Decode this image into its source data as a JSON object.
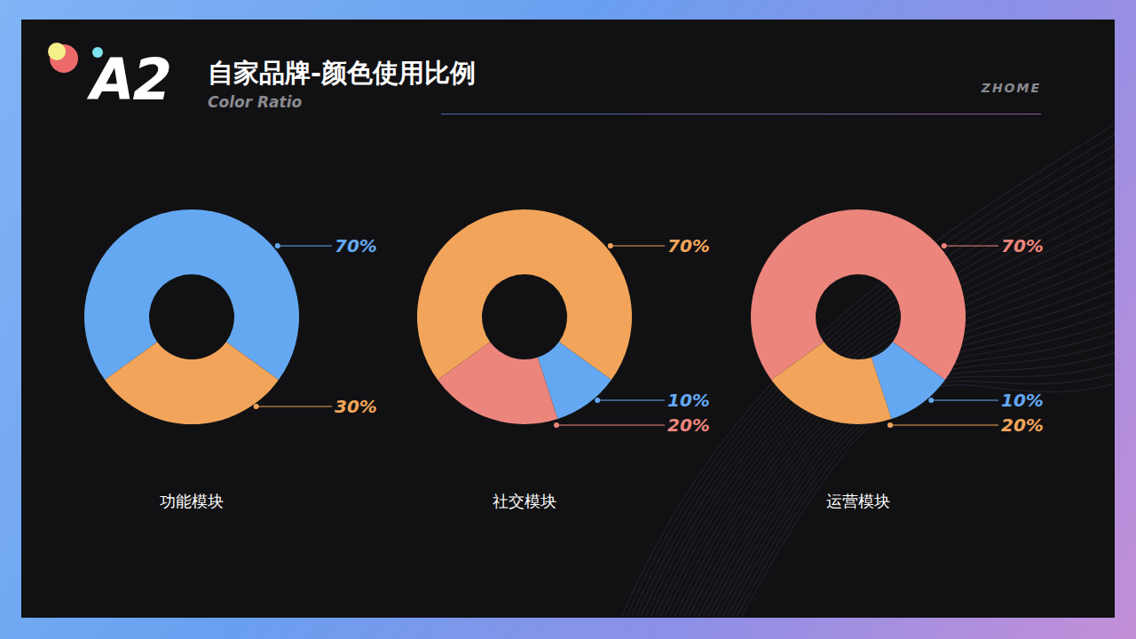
{
  "header": {
    "badge": "A2",
    "title": "自家品牌-颜色使用比例",
    "subtitle": "Color Ratio",
    "brand": "ZHOME"
  },
  "chart_data": [
    {
      "type": "pie",
      "title": "功能模块",
      "values": [
        70,
        30
      ],
      "value_labels": [
        "70%",
        "30%"
      ],
      "colors": [
        "#64a8f2",
        "#f2a55a"
      ],
      "data_labels": true
    },
    {
      "type": "pie",
      "title": "社交模块",
      "values": [
        70,
        10,
        20
      ],
      "value_labels": [
        "70%",
        "10%",
        "20%"
      ],
      "colors": [
        "#f2a55a",
        "#64a8f2",
        "#ec857c"
      ],
      "data_labels": true
    },
    {
      "type": "pie",
      "title": "运营模块",
      "values": [
        70,
        10,
        20
      ],
      "value_labels": [
        "70%",
        "10%",
        "20%"
      ],
      "colors": [
        "#ec857c",
        "#64a8f2",
        "#f2a55a"
      ],
      "data_labels": true
    }
  ]
}
